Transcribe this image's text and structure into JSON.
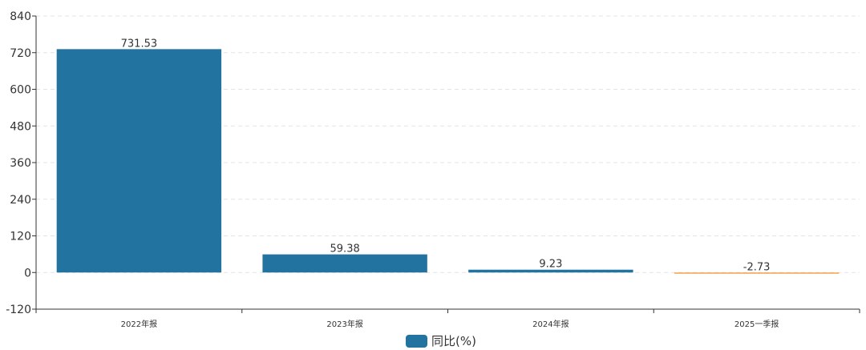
{
  "chart_data": {
    "type": "bar",
    "categories": [
      "2022年报",
      "2023年报",
      "2024年报",
      "2025一季报"
    ],
    "series": [
      {
        "name": "同比(%)",
        "values": [
          731.53,
          59.38,
          9.23,
          -2.73
        ]
      }
    ],
    "data_labels": [
      "731.53",
      "59.38",
      "9.23",
      "-2.73"
    ],
    "y_ticks": [
      -120,
      0,
      120,
      240,
      360,
      480,
      600,
      720,
      840
    ],
    "ylim": [
      -120,
      840
    ],
    "grid": true,
    "legend": "bottom-center",
    "colors": {
      "positive": "#22739f",
      "negative": "#f5a04a",
      "axis": "#333333",
      "grid": "#e3e3e3"
    }
  }
}
